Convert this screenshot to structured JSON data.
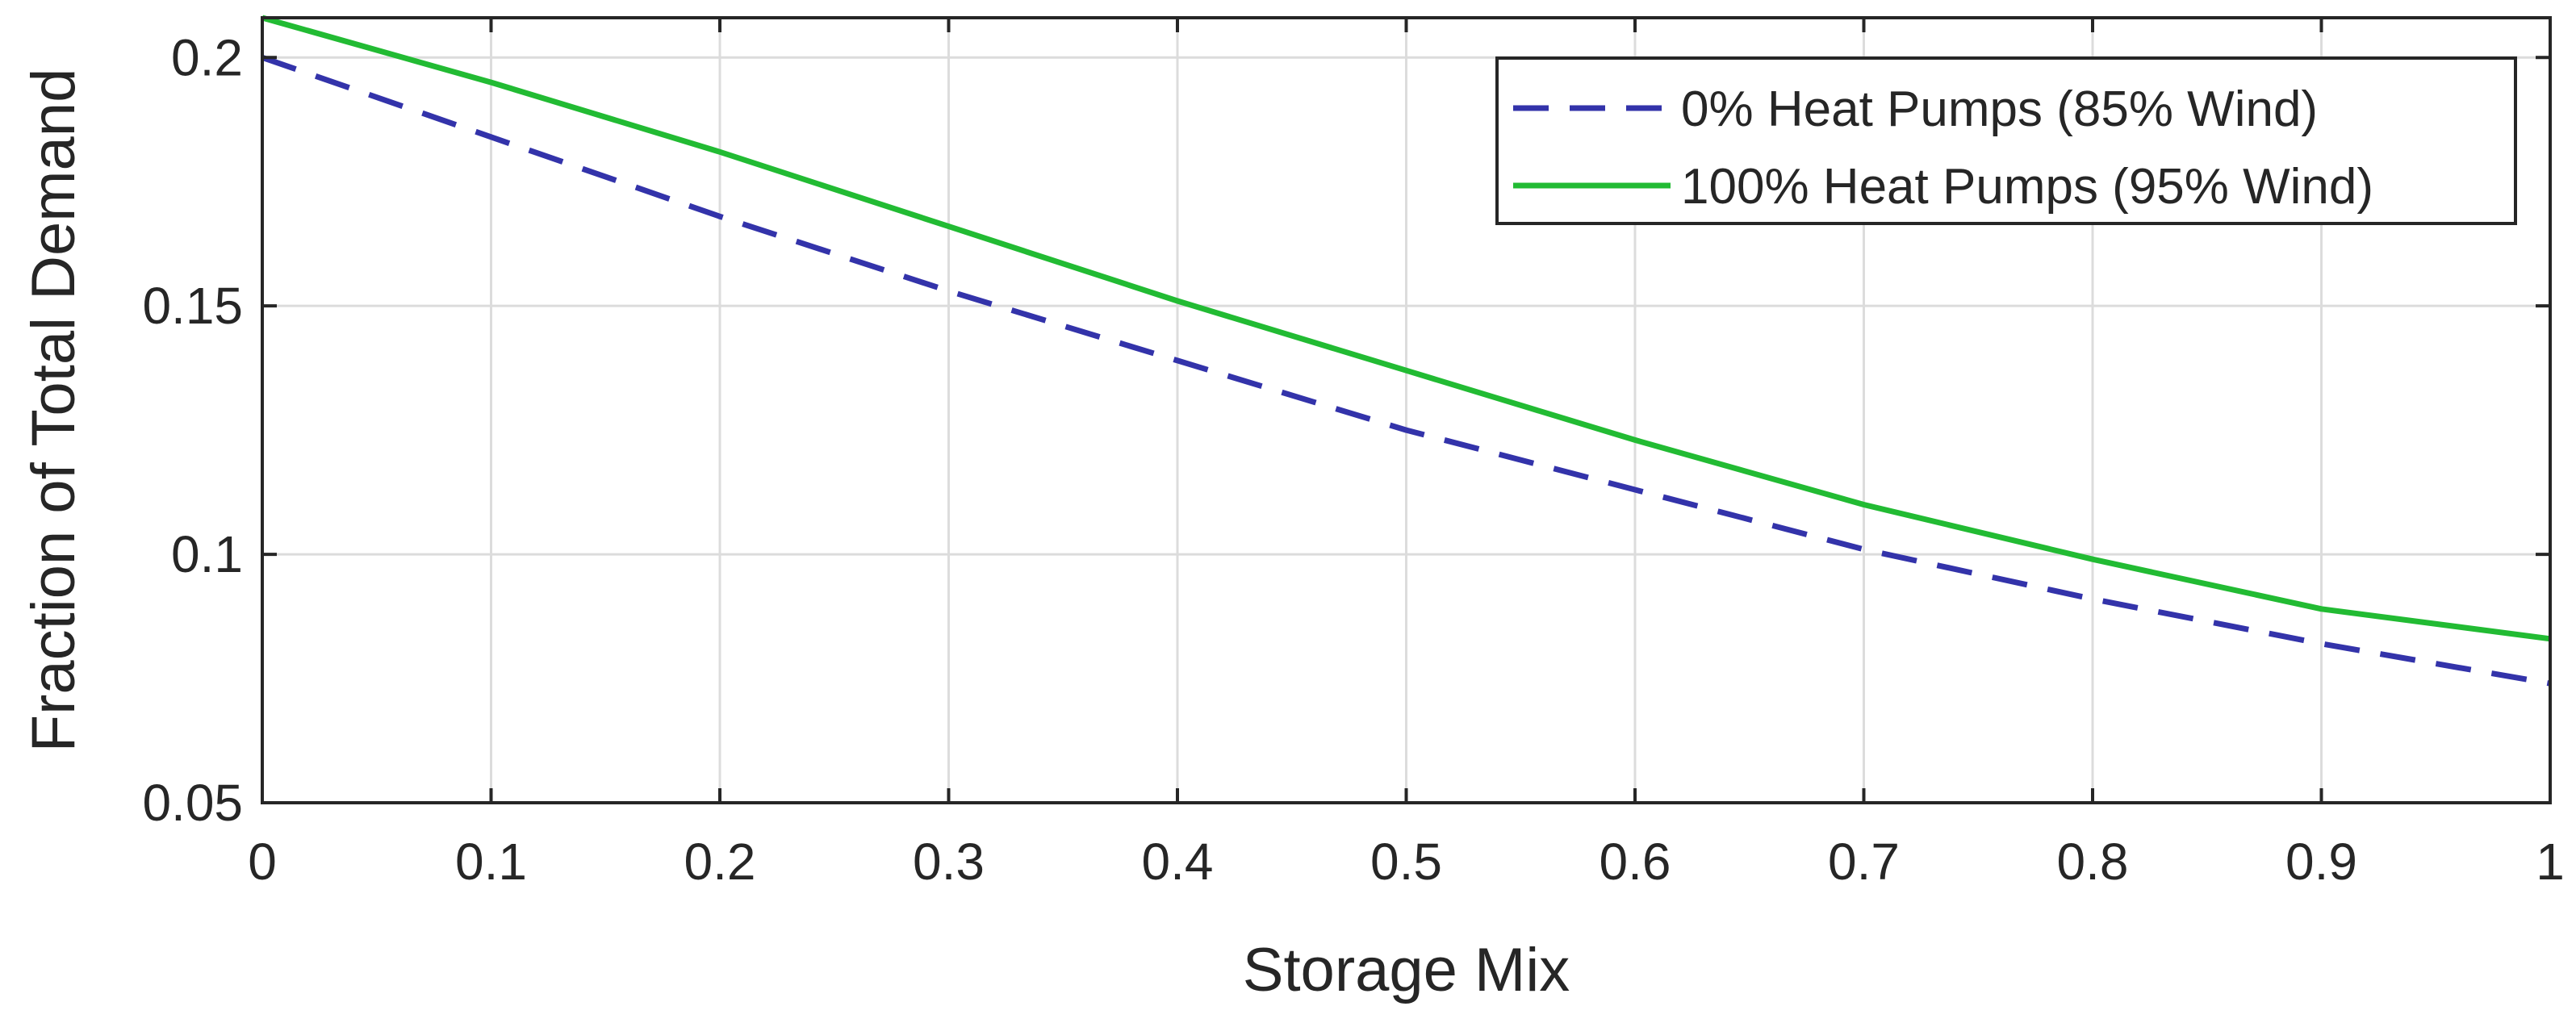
{
  "chart_data": {
    "type": "line",
    "title": "",
    "xlabel": "Storage Mix",
    "ylabel": "Fraction of Total Demand",
    "xlim": [
      0,
      1
    ],
    "ylim": [
      0.05,
      0.208
    ],
    "grid": true,
    "legend_position": "top-right",
    "x_ticks": [
      0,
      0.1,
      0.2,
      0.3,
      0.4,
      0.5,
      0.6,
      0.7,
      0.8,
      0.9,
      1
    ],
    "x_tick_labels": [
      "0",
      "0.1",
      "0.2",
      "0.3",
      "0.4",
      "0.5",
      "0.6",
      "0.7",
      "0.8",
      "0.9",
      "1"
    ],
    "y_ticks": [
      0.05,
      0.1,
      0.15,
      0.2
    ],
    "y_tick_labels": [
      "0.05",
      "0.1",
      "0.15",
      "0.2"
    ],
    "series": [
      {
        "name": "0% Heat Pumps (85% Wind)",
        "color": "#3333aa",
        "style": "dashed",
        "x": [
          0,
          0.1,
          0.2,
          0.3,
          0.4,
          0.5,
          0.6,
          0.7,
          0.8,
          0.9,
          1
        ],
        "y": [
          0.2,
          0.184,
          0.168,
          0.153,
          0.139,
          0.125,
          0.113,
          0.101,
          0.091,
          0.082,
          0.074
        ]
      },
      {
        "name": "100% Heat Pumps (95% Wind)",
        "color": "#22bb33",
        "style": "solid",
        "x": [
          0,
          0.1,
          0.2,
          0.3,
          0.4,
          0.5,
          0.6,
          0.7,
          0.8,
          0.9,
          1
        ],
        "y": [
          0.208,
          0.195,
          0.181,
          0.166,
          0.151,
          0.137,
          0.123,
          0.11,
          0.099,
          0.089,
          0.083
        ]
      }
    ]
  }
}
